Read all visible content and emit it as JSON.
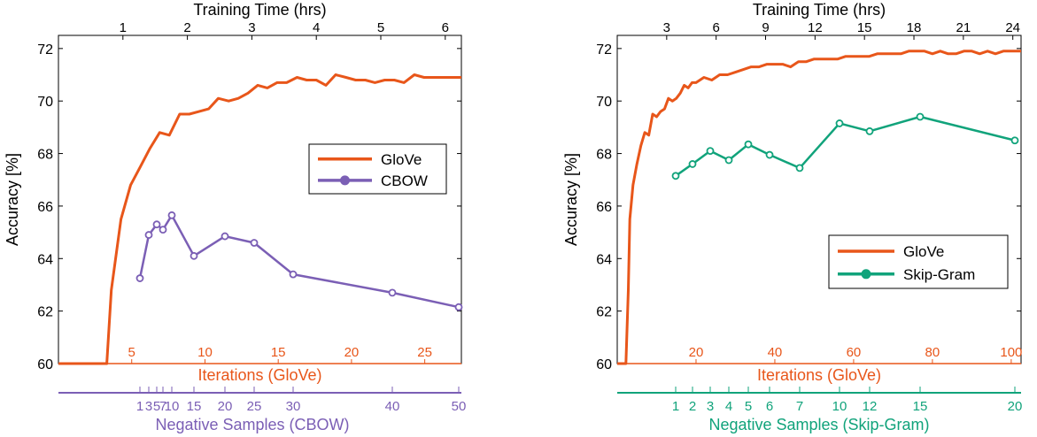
{
  "colors": {
    "glove": "#e8561a",
    "cbow": "#7b5fb5",
    "skipgram": "#11a37b",
    "axis": "#000000"
  },
  "chart_data": [
    {
      "type": "line",
      "title": "",
      "ylabel": "Accuracy [%]",
      "ylim": [
        60,
        72.5
      ],
      "yticks": [
        60,
        62,
        64,
        66,
        68,
        70,
        72
      ],
      "top_axis": {
        "label": "Training Time (hrs)",
        "ticks": [
          1,
          2,
          3,
          4,
          5,
          6
        ],
        "range": [
          0,
          6.25
        ]
      },
      "iterations_axis": {
        "label": "Iterations (GloVe)",
        "ticks": [
          5,
          10,
          15,
          20,
          25
        ],
        "range": [
          0,
          27.5
        ]
      },
      "negative_axis": {
        "label": "Negative Samples (CBOW)",
        "ticks": [
          1,
          3,
          5,
          7,
          10,
          15,
          20,
          25,
          30,
          40,
          50
        ],
        "tick_labels": [
          "1",
          "3",
          "5",
          "7",
          "10",
          "15",
          "20",
          "25",
          "30",
          "40",
          "50"
        ]
      },
      "legend": {
        "position": "center-right",
        "entries": [
          "GloVe",
          "CBOW"
        ]
      },
      "series": [
        {
          "name": "GloVe",
          "axis": "training_time_hrs",
          "x": [
            0,
            0.75,
            0.82,
            0.97,
            1.12,
            1.27,
            1.42,
            1.57,
            1.72,
            1.88,
            2.03,
            2.18,
            2.33,
            2.48,
            2.64,
            2.79,
            2.94,
            3.09,
            3.24,
            3.39,
            3.54,
            3.7,
            3.85,
            4.0,
            4.15,
            4.3,
            4.46,
            4.61,
            4.76,
            4.91,
            5.06,
            5.21,
            5.36,
            5.52,
            5.67,
            5.82,
            5.97,
            6.12,
            6.25
          ],
          "values": [
            60,
            60,
            62.8,
            65.5,
            66.8,
            67.5,
            68.2,
            68.8,
            68.7,
            69.5,
            69.5,
            69.6,
            69.7,
            70.1,
            70.0,
            70.1,
            70.3,
            70.6,
            70.5,
            70.7,
            70.7,
            70.9,
            70.8,
            70.8,
            70.6,
            71.0,
            70.9,
            70.8,
            70.8,
            70.7,
            70.8,
            70.8,
            70.7,
            71.0,
            70.9,
            70.9,
            70.9,
            70.9,
            70.9
          ]
        },
        {
          "name": "CBOW",
          "axis": "negative_samples",
          "x": [
            1,
            3,
            5,
            7,
            10,
            15,
            20,
            25,
            30,
            40,
            50
          ],
          "values": [
            63.25,
            64.9,
            65.3,
            65.1,
            65.65,
            64.1,
            64.85,
            64.6,
            63.4,
            62.7,
            62.15
          ]
        }
      ]
    },
    {
      "type": "line",
      "title": "",
      "ylabel": "Accuracy [%]",
      "ylim": [
        60,
        72.5
      ],
      "yticks": [
        60,
        62,
        64,
        66,
        68,
        70,
        72
      ],
      "top_axis": {
        "label": "Training Time (hrs)",
        "ticks": [
          3,
          6,
          9,
          12,
          15,
          18,
          21,
          24
        ],
        "range": [
          0,
          24.5
        ]
      },
      "iterations_axis": {
        "label": "Iterations (GloVe)",
        "ticks": [
          20,
          40,
          60,
          80,
          100
        ],
        "range": [
          0,
          102.5
        ]
      },
      "negative_axis": {
        "label": "Negative Samples (Skip-Gram)",
        "ticks": [
          1,
          2,
          3,
          4,
          5,
          6,
          7,
          10,
          12,
          15,
          20
        ],
        "tick_labels": [
          "1",
          "2",
          "3",
          "4",
          "5",
          "6",
          "7",
          "10",
          "12",
          "15",
          "20"
        ]
      },
      "legend": {
        "position": "lower-right",
        "entries": [
          "GloVe",
          "Skip-Gram"
        ]
      },
      "series": [
        {
          "name": "GloVe",
          "axis": "iterations",
          "x": [
            0,
            2.2,
            2.8,
            3.2,
            4,
            5,
            6,
            7,
            8,
            9,
            10,
            11,
            12,
            13,
            14,
            15,
            16,
            17,
            18,
            19,
            20,
            22,
            24,
            26,
            28,
            30,
            32,
            34,
            36,
            38,
            40,
            42,
            44,
            46,
            48,
            50,
            52,
            54,
            56,
            58,
            60,
            62,
            64,
            66,
            68,
            70,
            72,
            74,
            76,
            78,
            80,
            82,
            84,
            86,
            88,
            90,
            92,
            94,
            96,
            98,
            100,
            102.5
          ],
          "values": [
            60,
            60,
            62.8,
            65.5,
            66.8,
            67.6,
            68.3,
            68.8,
            68.7,
            69.5,
            69.4,
            69.6,
            69.7,
            70.1,
            70.0,
            70.1,
            70.3,
            70.6,
            70.5,
            70.7,
            70.7,
            70.9,
            70.8,
            71.0,
            71.0,
            71.1,
            71.2,
            71.3,
            71.3,
            71.4,
            71.4,
            71.4,
            71.3,
            71.5,
            71.5,
            71.6,
            71.6,
            71.6,
            71.6,
            71.7,
            71.7,
            71.7,
            71.7,
            71.8,
            71.8,
            71.8,
            71.8,
            71.9,
            71.9,
            71.9,
            71.8,
            71.9,
            71.8,
            71.8,
            71.9,
            71.9,
            71.8,
            71.9,
            71.8,
            71.9,
            71.9,
            71.9
          ]
        },
        {
          "name": "Skip-Gram",
          "axis": "negative_samples",
          "x": [
            1,
            2,
            3,
            4,
            5,
            6,
            7,
            10,
            12,
            15,
            20
          ],
          "values": [
            67.15,
            67.6,
            68.1,
            67.75,
            68.35,
            67.95,
            67.45,
            69.15,
            68.85,
            69.4,
            68.5
          ]
        }
      ]
    }
  ]
}
